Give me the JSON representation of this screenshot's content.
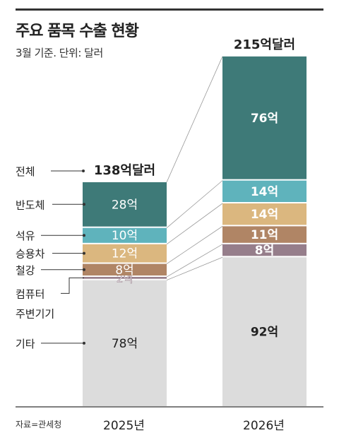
{
  "header": {
    "title": "주요 품목 수출 현황",
    "subtitle": "3월 기준. 단위: 달러",
    "source": "자료=관세청"
  },
  "chart_data": {
    "type": "bar",
    "stacked": true,
    "unit": "억",
    "categories": [
      "2025년",
      "2026년"
    ],
    "totals": [
      138,
      215
    ],
    "total_labels": [
      "138억달러",
      "215억달러"
    ],
    "series": [
      {
        "name": "기타",
        "values": [
          78,
          92
        ],
        "labels": [
          "78억",
          "92억"
        ],
        "color": "#dcdcdc"
      },
      {
        "name": "컴퓨터 주변기기",
        "values": [
          2,
          8
        ],
        "labels": [
          "2억",
          "8억"
        ],
        "color": "#967e8b"
      },
      {
        "name": "철강",
        "values": [
          8,
          11
        ],
        "labels": [
          "8억",
          "11억"
        ],
        "color": "#b08565"
      },
      {
        "name": "승용차",
        "values": [
          12,
          14
        ],
        "labels": [
          "12억",
          "14억"
        ],
        "color": "#dbb77f"
      },
      {
        "name": "석유",
        "values": [
          10,
          14
        ],
        "labels": [
          "10억",
          "14억"
        ],
        "color": "#5fb3bc"
      },
      {
        "name": "반도체",
        "values": [
          28,
          76
        ],
        "labels": [
          "28억",
          "76억"
        ],
        "color": "#3e7a78"
      }
    ],
    "total_legend": "전체",
    "grid": false,
    "legend_position": "left"
  }
}
